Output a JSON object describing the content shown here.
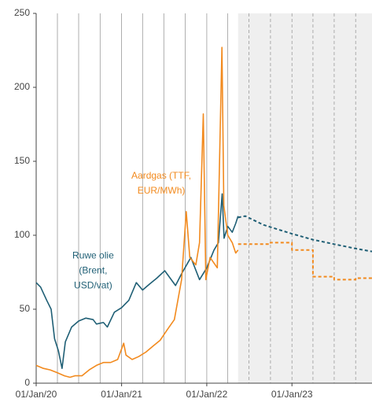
{
  "chart_data": {
    "type": "line",
    "xlim": [
      "2020-01-01",
      "2023-12-10"
    ],
    "ylim": [
      0,
      250
    ],
    "yticks": [
      0,
      50,
      100,
      150,
      200,
      250
    ],
    "xticks": [
      {
        "value": "2020-01-01",
        "label": "01/Jan/20"
      },
      {
        "value": "2021-01-01",
        "label": "01/Jan/21"
      },
      {
        "value": "2022-01-01",
        "label": "01/Jan/22"
      },
      {
        "value": "2023-01-01",
        "label": "01/Jan/23"
      }
    ],
    "xgrid": [
      "2020-04-01",
      "2020-07-01",
      "2020-10-01",
      "2021-01-01",
      "2021-04-01",
      "2021-07-01",
      "2021-10-01",
      "2022-01-01",
      "2022-04-01",
      "2022-07-01",
      "2022-10-01",
      "2023-01-01",
      "2023-04-01",
      "2023-07-01",
      "2023-10-01"
    ],
    "shaded_from": "2022-05-15",
    "series": [
      {
        "color": "#1f5f75",
        "dashed": false,
        "x": [
          "2020-01-01",
          "2020-01-20",
          "2020-02-15",
          "2020-03-05",
          "2020-03-20",
          "2020-04-05",
          "2020-04-21",
          "2020-05-05",
          "2020-06-01",
          "2020-07-01",
          "2020-08-01",
          "2020-09-01",
          "2020-09-15",
          "2020-10-15",
          "2020-11-01",
          "2020-12-01",
          "2021-01-01",
          "2021-02-01",
          "2021-03-05",
          "2021-04-01",
          "2021-05-01",
          "2021-06-01",
          "2021-07-05",
          "2021-08-20",
          "2021-09-15",
          "2021-10-25",
          "2021-12-01",
          "2022-01-01",
          "2022-02-01",
          "2022-02-20",
          "2022-03-08",
          "2022-03-16",
          "2022-04-01",
          "2022-04-20",
          "2022-05-05",
          "2022-05-15"
        ],
        "values": [
          68,
          65,
          56,
          50,
          30,
          22,
          10,
          28,
          38,
          42,
          44,
          43,
          40,
          41,
          38,
          48,
          51,
          56,
          68,
          63,
          67,
          71,
          76,
          66,
          74,
          85,
          70,
          78,
          90,
          95,
          128,
          98,
          106,
          102,
          108,
          113
        ]
      },
      {
        "color": "#1f5f75",
        "dashed": true,
        "x": [
          "2022-05-15",
          "2022-06-15",
          "2022-09-01",
          "2023-01-01",
          "2023-04-01",
          "2023-07-01",
          "2023-10-01",
          "2023-12-10"
        ],
        "values": [
          112,
          113,
          107,
          101,
          97,
          94,
          91,
          89
        ]
      },
      {
        "color": "#f28a1e",
        "dashed": false,
        "x": [
          "2020-01-01",
          "2020-02-01",
          "2020-03-01",
          "2020-04-01",
          "2020-05-01",
          "2020-05-25",
          "2020-06-15",
          "2020-07-15",
          "2020-08-15",
          "2020-09-15",
          "2020-10-15",
          "2020-11-15",
          "2020-12-15",
          "2021-01-10",
          "2021-01-20",
          "2021-02-15",
          "2021-03-15",
          "2021-04-15",
          "2021-05-15",
          "2021-06-15",
          "2021-07-15",
          "2021-08-15",
          "2021-09-15",
          "2021-10-05",
          "2021-10-20",
          "2021-11-15",
          "2021-12-01",
          "2021-12-17",
          "2021-12-28",
          "2022-01-15",
          "2022-02-15",
          "2022-03-07",
          "2022-03-15",
          "2022-04-01",
          "2022-04-20",
          "2022-05-05",
          "2022-05-15"
        ],
        "values": [
          12,
          10,
          9,
          7,
          5,
          4,
          5,
          5,
          9,
          12,
          14,
          14,
          16,
          27,
          19,
          16,
          18,
          21,
          25,
          29,
          36,
          43,
          70,
          116,
          85,
          80,
          95,
          182,
          70,
          85,
          78,
          227,
          120,
          100,
          95,
          88,
          90
        ]
      },
      {
        "color": "#f28a1e",
        "dashed": true,
        "x": [
          "2022-05-15",
          "2022-10-01",
          "2022-10-01",
          "2023-01-01",
          "2023-01-01",
          "2023-04-01",
          "2023-04-01",
          "2023-07-01",
          "2023-07-01",
          "2023-10-01",
          "2023-10-01",
          "2023-12-10"
        ],
        "values": [
          94,
          94,
          95,
          95,
          90,
          90,
          72,
          72,
          70,
          70,
          71,
          71
        ]
      }
    ],
    "annotations": [
      {
        "lines": [
          "Ruwe olie",
          "(Brent,",
          "USD/vat)"
        ],
        "color": "#1f5f75",
        "x": "2020-09-01",
        "y": 86
      },
      {
        "lines": [
          "Aardgas (TTF,",
          "EUR/MWh)"
        ],
        "color": "#f28a1e",
        "x": "2021-06-20",
        "y": 140
      }
    ]
  }
}
